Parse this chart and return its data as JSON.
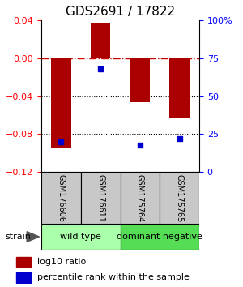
{
  "title": "GDS2691 / 17822",
  "samples": [
    "GSM176606",
    "GSM176611",
    "GSM175764",
    "GSM175765"
  ],
  "log10_ratio": [
    -0.095,
    0.037,
    -0.046,
    -0.063
  ],
  "percentile_rank": [
    20,
    68,
    18,
    22
  ],
  "groups": [
    {
      "label": "wild type",
      "indices": [
        0,
        1
      ],
      "color": "#aaffaa"
    },
    {
      "label": "dominant negative",
      "indices": [
        2,
        3
      ],
      "color": "#55dd55"
    }
  ],
  "ylim_left": [
    -0.12,
    0.04
  ],
  "ylim_right": [
    0,
    100
  ],
  "bar_color": "#aa0000",
  "square_color": "#0000cc",
  "bar_width": 0.5,
  "hline_zero_color": "#cc0000",
  "hline_dotted_color": "#000000",
  "background_color": "#ffffff",
  "label_box_color": "#c8c8c8",
  "legend_bar_label": "log10 ratio",
  "legend_square_label": "percentile rank within the sample",
  "strain_label": "strain",
  "title_fontsize": 11,
  "tick_fontsize": 8,
  "sample_fontsize": 7,
  "group_fontsize": 8,
  "legend_fontsize": 8
}
